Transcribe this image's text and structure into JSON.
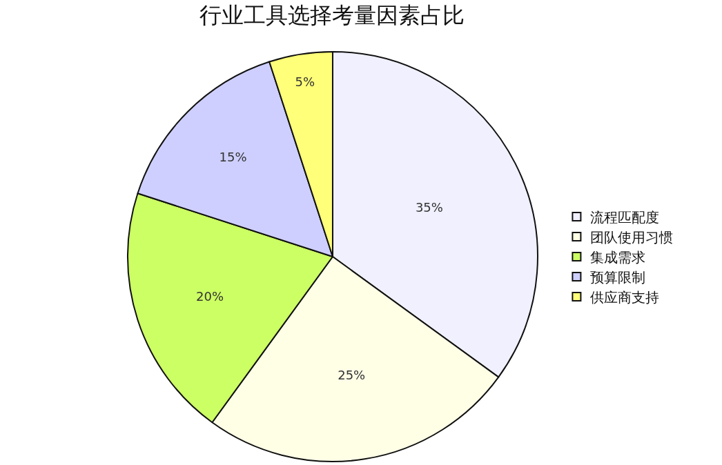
{
  "chart_data": {
    "type": "pie",
    "title": "行业工具选择考量因素占比",
    "categories": [
      "流程匹配度",
      "团队使用习惯",
      "集成需求",
      "预算限制",
      "供应商支持"
    ],
    "values": [
      35,
      25,
      20,
      15,
      5
    ],
    "value_labels": [
      "35%",
      "25%",
      "20%",
      "15%",
      "5%"
    ],
    "colors": [
      "#f0f0ff",
      "#ffffe6",
      "#ccff63",
      "#cecfff",
      "#ffff79"
    ],
    "legend": "right"
  }
}
